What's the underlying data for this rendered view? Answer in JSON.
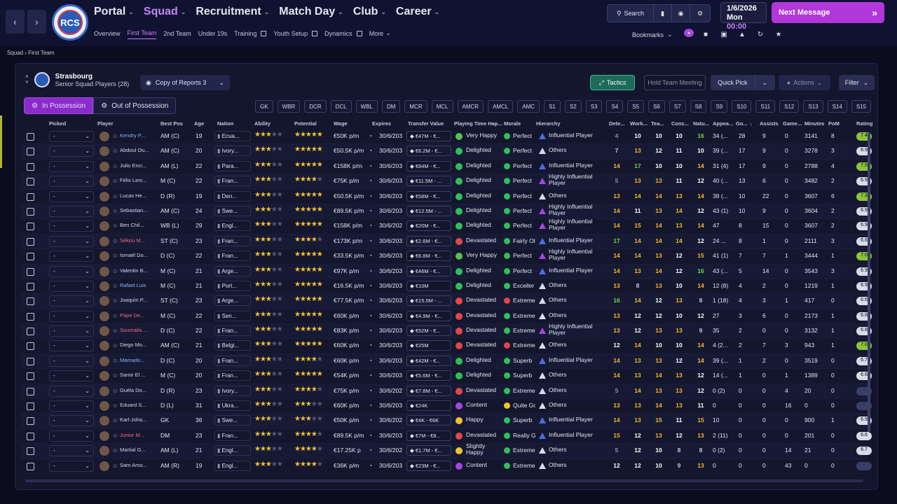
{
  "nav": {
    "back": "‹",
    "forward": "›",
    "club_badge": "RCS",
    "main": [
      {
        "label": "Portal",
        "active": false
      },
      {
        "label": "Squad",
        "active": true
      },
      {
        "label": "Recruitment",
        "active": false
      },
      {
        "label": "Match Day",
        "active": false
      },
      {
        "label": "Club",
        "active": false
      },
      {
        "label": "Career",
        "active": false
      }
    ],
    "sub": [
      {
        "label": "Overview",
        "active": false,
        "ext": false
      },
      {
        "label": "First Team",
        "active": true,
        "ext": false
      },
      {
        "label": "2nd Team",
        "active": false,
        "ext": false
      },
      {
        "label": "Under 19s",
        "active": false,
        "ext": false
      },
      {
        "label": "Training",
        "active": false,
        "ext": true
      },
      {
        "label": "Youth Setup",
        "active": false,
        "ext": true
      },
      {
        "label": "Dynamics",
        "active": false,
        "ext": true
      },
      {
        "label": "More",
        "active": false,
        "ext": false
      }
    ]
  },
  "header": {
    "search": "Search",
    "date": "1/6/2026",
    "day": "Mon",
    "time": "00:00",
    "next_message": "Next Message",
    "bookmarks": "Bookmarks"
  },
  "breadcrumb": {
    "root": "Squad",
    "current": "First Team"
  },
  "panel": {
    "club": "Strasbourg",
    "subtitle": "Senior Squad Players (28)",
    "view": "Copy of Reports 3",
    "tactics": "Tactics",
    "hold_meeting": "Hold Team Meeting",
    "quick_pick": "Quick Pick",
    "actions": "Actions",
    "filter": "Filter",
    "in_possession": "In Possession",
    "out_possession": "Out of Possession",
    "positions": [
      "GK",
      "WBR",
      "DCR",
      "DCL",
      "WBL",
      "DM",
      "MCR",
      "MCL",
      "AMCR",
      "AMCL",
      "AMC",
      "S1",
      "S2",
      "S3",
      "S4",
      "S5",
      "S6",
      "S7",
      "S8",
      "S9",
      "S10",
      "S11",
      "S12",
      "S13",
      "S14",
      "S15"
    ]
  },
  "columns": [
    "Picked",
    "Player",
    "Best Pos",
    "Age",
    "Nation",
    "Ability",
    "Potential",
    "Wage",
    "Expires",
    "Transfer Value",
    "Playing Time Hap...",
    "Morale",
    "Hierarchy",
    "Dete...",
    "Work...",
    "Tea...",
    "Conc...",
    "Natu...",
    "Appea...",
    "Go...",
    "Assists",
    "Game...",
    "Minutes",
    "PoM",
    "Rating"
  ],
  "colors": {
    "accent": "#c685f5",
    "possession": "#8a2ccc",
    "tactics": "#1f6a58",
    "star": "#f1c232"
  },
  "players": [
    {
      "picked": "-",
      "name": "Kendry P...",
      "style": "hl",
      "pos": "AM (C)",
      "age": "19",
      "nation": "Ecua...",
      "ab": 3,
      "pot": 5,
      "wage": "€50K p/m",
      "exp": "30/6/203",
      "tv": "€47M - €...",
      "pt": "Very Happy",
      "ptc": "#58c24b",
      "mor": "Perfect",
      "morc": "#2fbf5a",
      "hier": "Influential Player",
      "hierc": "#4a6ee0",
      "det": "4",
      "wor": "10",
      "tea": "10",
      "con": "10",
      "nat": "16",
      "app": "34 (...",
      "gls": "28",
      "ast": "9",
      "gam": "0",
      "min": "3141",
      "pom": "8",
      "rat": "7.4",
      "ratc": "#8ac43a"
    },
    {
      "picked": "-",
      "name": "Abdoul Ou...",
      "style": "",
      "pos": "AM (C)",
      "age": "20",
      "nation": "Ivory...",
      "ab": 3,
      "pot": 5,
      "wage": "€50.5K p/m",
      "exp": "30/6/203",
      "tv": "€6.2M - €...",
      "pt": "Delighted",
      "ptc": "#2fbf5a",
      "mor": "Perfect",
      "morc": "#2fbf5a",
      "hier": "Others",
      "hierc": "#d8dbe8",
      "det": "7",
      "wor": "13",
      "tea": "12",
      "con": "11",
      "nat": "10",
      "app": "39 (...",
      "gls": "17",
      "ast": "9",
      "gam": "0",
      "min": "3278",
      "pom": "3",
      "rat": "6.9",
      "ratc": "#d8dbe8"
    },
    {
      "picked": "-",
      "name": "Julio Enci...",
      "style": "",
      "pos": "AM (L)",
      "age": "22",
      "nation": "Para...",
      "ab": 3,
      "pot": 5,
      "wage": "€158K p/m",
      "exp": "30/6/203",
      "tv": "€84M - €...",
      "pt": "Delighted",
      "ptc": "#2fbf5a",
      "mor": "Perfect",
      "morc": "#2fbf5a",
      "hier": "Influential Player",
      "hierc": "#4a6ee0",
      "det": "14",
      "wor": "17",
      "tea": "10",
      "con": "10",
      "nat": "14",
      "app": "31 (4)",
      "gls": "17",
      "ast": "9",
      "gam": "0",
      "min": "2788",
      "pom": "4",
      "rat": "7.5",
      "ratc": "#8ac43a"
    },
    {
      "picked": "-",
      "name": "Félix Lem...",
      "style": "",
      "pos": "M (C)",
      "age": "22",
      "nation": "Fran...",
      "ab": 3,
      "pot": 4,
      "wage": "€75K p/m",
      "exp": "30/6/203",
      "tv": "€11.5M - ...",
      "pt": "Delighted",
      "ptc": "#2fbf5a",
      "mor": "Perfect",
      "morc": "#2fbf5a",
      "hier": "Highly Influential Player",
      "hierc": "#a347e0",
      "det": "5",
      "wor": "13",
      "tea": "13",
      "con": "11",
      "nat": "12",
      "app": "40 (...",
      "gls": "13",
      "ast": "6",
      "gam": "0",
      "min": "3482",
      "pom": "2",
      "rat": "6.9",
      "ratc": "#d8dbe8"
    },
    {
      "picked": "-",
      "name": "Lucas He...",
      "style": "",
      "pos": "D (R)",
      "age": "19",
      "nation": "Den...",
      "ab": 3,
      "pot": 5,
      "wage": "€50.5K p/m",
      "exp": "30/6/203",
      "tv": "€58M - €...",
      "pt": "Delighted",
      "ptc": "#2fbf5a",
      "mor": "Perfect",
      "morc": "#2fbf5a",
      "hier": "Others",
      "hierc": "#d8dbe8",
      "det": "13",
      "wor": "14",
      "tea": "14",
      "con": "13",
      "nat": "14",
      "app": "38 (...",
      "gls": "10",
      "ast": "22",
      "gam": "0",
      "min": "3607",
      "pom": "6",
      "rat": "7.3",
      "ratc": "#8ac43a"
    },
    {
      "picked": "-",
      "name": "Sebastian...",
      "style": "",
      "pos": "AM (C)",
      "age": "24",
      "nation": "Swe...",
      "ab": 3,
      "pot": 5,
      "wage": "€89.5K p/m",
      "exp": "30/6/203",
      "tv": "€12.5M - ...",
      "pt": "Delighted",
      "ptc": "#2fbf5a",
      "mor": "Perfect",
      "morc": "#2fbf5a",
      "hier": "Highly Influential Player",
      "hierc": "#a347e0",
      "det": "14",
      "wor": "11",
      "tea": "13",
      "con": "14",
      "nat": "12",
      "app": "43 (1)",
      "gls": "10",
      "ast": "9",
      "gam": "0",
      "min": "3604",
      "pom": "2",
      "rat": "6.9",
      "ratc": "#d8dbe8"
    },
    {
      "picked": "-",
      "name": "Ben Chil...",
      "style": "",
      "pos": "WB (L)",
      "age": "29",
      "nation": "Engl...",
      "ab": 3,
      "pot": 5,
      "wage": "€158K p/m",
      "exp": "30/6/202",
      "tv": "€20M - €...",
      "pt": "Delighted",
      "ptc": "#2fbf5a",
      "mor": "Perfect",
      "morc": "#2fbf5a",
      "hier": "Highly Influential Player",
      "hierc": "#a347e0",
      "det": "14",
      "wor": "15",
      "tea": "14",
      "con": "13",
      "nat": "14",
      "app": "47",
      "gls": "8",
      "ast": "15",
      "gam": "0",
      "min": "3607",
      "pom": "2",
      "rat": "6.9",
      "ratc": "#d8dbe8"
    },
    {
      "picked": "-",
      "name": "Sékou M...",
      "style": "red",
      "pos": "ST (C)",
      "age": "23",
      "nation": "Fran...",
      "ab": 3,
      "pot": 4,
      "wage": "€173K p/m",
      "exp": "30/6/203",
      "tv": "€2.6M - €...",
      "pt": "Devastated",
      "ptc": "#e04848",
      "mor": "Fairly Ol",
      "morc": "#2fbf5a",
      "hier": "Influential Player",
      "hierc": "#4a6ee0",
      "det": "17",
      "wor": "14",
      "tea": "14",
      "con": "14",
      "nat": "12",
      "app": "24 ...",
      "gls": "8",
      "ast": "1",
      "gam": "0",
      "min": "2111",
      "pom": "3",
      "rat": "6.6",
      "ratc": "#d8dbe8"
    },
    {
      "picked": "-",
      "name": "Ismaël Do...",
      "style": "",
      "pos": "D (C)",
      "age": "22",
      "nation": "Fran...",
      "ab": 3,
      "pot": 5,
      "wage": "€33.5K p/m",
      "exp": "30/6/203",
      "tv": "€6.8M - €...",
      "pt": "Very Happy",
      "ptc": "#58c24b",
      "mor": "Perfect",
      "morc": "#2fbf5a",
      "hier": "Highly Influential Player",
      "hierc": "#a347e0",
      "det": "14",
      "wor": "14",
      "tea": "13",
      "con": "12",
      "nat": "15",
      "app": "41 (1)",
      "gls": "7",
      "ast": "7",
      "gam": "1",
      "min": "3444",
      "pom": "1",
      "rat": "7.0",
      "ratc": "#8ac43a"
    },
    {
      "picked": "-",
      "name": "Valentin B...",
      "style": "",
      "pos": "M (C)",
      "age": "21",
      "nation": "Arge...",
      "ab": 3,
      "pot": 5,
      "wage": "€97K p/m",
      "exp": "30/6/203",
      "tv": "€46M - €...",
      "pt": "Delighted",
      "ptc": "#2fbf5a",
      "mor": "Perfect",
      "morc": "#2fbf5a",
      "hier": "Influential Player",
      "hierc": "#4a6ee0",
      "det": "14",
      "wor": "13",
      "tea": "14",
      "con": "12",
      "nat": "16",
      "app": "43 (...",
      "gls": "5",
      "ast": "14",
      "gam": "0",
      "min": "3543",
      "pom": "3",
      "rat": "6.9",
      "ratc": "#d8dbe8"
    },
    {
      "picked": "-",
      "name": "Rafael Luis",
      "style": "hl",
      "pos": "M (C)",
      "age": "21",
      "nation": "Port...",
      "ab": 3,
      "pot": 5,
      "wage": "€16.5K p/m",
      "exp": "30/6/203",
      "tv": "€10M",
      "pt": "Delighted",
      "ptc": "#2fbf5a",
      "mor": "Exceller",
      "morc": "#2fbf5a",
      "hier": "Others",
      "hierc": "#d8dbe8",
      "det": "13",
      "wor": "8",
      "tea": "13",
      "con": "10",
      "nat": "14",
      "app": "12 (8)",
      "gls": "4",
      "ast": "2",
      "gam": "0",
      "min": "1219",
      "pom": "1",
      "rat": "6.9",
      "ratc": "#d8dbe8"
    },
    {
      "picked": "-",
      "name": "Joaquín P...",
      "style": "",
      "pos": "ST (C)",
      "age": "23",
      "nation": "Arge...",
      "ab": 3,
      "pot": 5,
      "wage": "€77.5K p/m",
      "exp": "30/6/203",
      "tv": "€15.5M - ...",
      "pt": "Devastated",
      "ptc": "#e04848",
      "mor": "Extreme",
      "morc": "#e04848",
      "hier": "Others",
      "hierc": "#d8dbe8",
      "det": "16",
      "wor": "14",
      "tea": "12",
      "con": "13",
      "nat": "8",
      "app": "1 (18)",
      "gls": "4",
      "ast": "3",
      "gam": "1",
      "min": "417",
      "pom": "0",
      "rat": "6.6",
      "ratc": "#d8dbe8"
    },
    {
      "picked": "-",
      "name": "Pape De...",
      "style": "red",
      "pos": "M (C)",
      "age": "22",
      "nation": "Sen...",
      "ab": 3,
      "pot": 5,
      "wage": "€60K p/m",
      "exp": "30/6/203",
      "tv": "€4.9M - €...",
      "pt": "Devastated",
      "ptc": "#e04848",
      "mor": "Extreme",
      "morc": "#2fbf5a",
      "hier": "Others",
      "hierc": "#d8dbe8",
      "det": "13",
      "wor": "12",
      "tea": "12",
      "con": "10",
      "nat": "12",
      "app": "27",
      "gls": "3",
      "ast": "6",
      "gam": "0",
      "min": "2173",
      "pom": "1",
      "rat": "6.8",
      "ratc": "#d8dbe8"
    },
    {
      "picked": "-",
      "name": "Soumaila ...",
      "style": "red",
      "pos": "D (C)",
      "age": "22",
      "nation": "Fran...",
      "ab": 3,
      "pot": 5,
      "wage": "€83K p/m",
      "exp": "30/6/203",
      "tv": "€52M - €...",
      "pt": "Devastated",
      "ptc": "#e04848",
      "mor": "Extreme",
      "morc": "#2fbf5a",
      "hier": "Highly Influential Player",
      "hierc": "#a347e0",
      "det": "13",
      "wor": "12",
      "tea": "13",
      "con": "13",
      "nat": "9",
      "app": "35",
      "gls": "2",
      "ast": "0",
      "gam": "0",
      "min": "3132",
      "pom": "1",
      "rat": "6.8",
      "ratc": "#d8dbe8"
    },
    {
      "picked": "-",
      "name": "Diego Mo...",
      "style": "",
      "pos": "AM (C)",
      "age": "21",
      "nation": "Belgi...",
      "ab": 3,
      "pot": 5,
      "wage": "€60K p/m",
      "exp": "30/6/203",
      "tv": "€25M",
      "pt": "Devastated",
      "ptc": "#e04848",
      "mor": "Extreme",
      "morc": "#e04848",
      "hier": "Others",
      "hierc": "#d8dbe8",
      "det": "12",
      "wor": "14",
      "tea": "10",
      "con": "10",
      "nat": "14",
      "app": "4 (2...",
      "gls": "2",
      "ast": "7",
      "gam": "3",
      "min": "943",
      "pom": "1",
      "rat": "7.0",
      "ratc": "#8ac43a"
    },
    {
      "picked": "-",
      "name": "Mamado...",
      "style": "hl",
      "pos": "D (C)",
      "age": "20",
      "nation": "Fran...",
      "ab": 3,
      "pot": 4,
      "wage": "€60K p/m",
      "exp": "30/6/203",
      "tv": "€42M - €...",
      "pt": "Delighted",
      "ptc": "#2fbf5a",
      "mor": "Superb",
      "morc": "#2fbf5a",
      "hier": "Influential Player",
      "hierc": "#4a6ee0",
      "det": "14",
      "wor": "13",
      "tea": "13",
      "con": "12",
      "nat": "14",
      "app": "39 (...",
      "gls": "1",
      "ast": "2",
      "gam": "0",
      "min": "3519",
      "pom": "0",
      "rat": "6.7",
      "ratc": "#d8dbe8"
    },
    {
      "picked": "-",
      "name": "Samir El ...",
      "style": "",
      "pos": "M (C)",
      "age": "20",
      "nation": "Fran...",
      "ab": 3,
      "pot": 5,
      "wage": "€54K p/m",
      "exp": "30/6/203",
      "tv": "€5.6M - €...",
      "pt": "Delighted",
      "ptc": "#2fbf5a",
      "mor": "Superb",
      "morc": "#2fbf5a",
      "hier": "Others",
      "hierc": "#d8dbe8",
      "det": "14",
      "wor": "13",
      "tea": "14",
      "con": "13",
      "nat": "12",
      "app": "14 (...",
      "gls": "1",
      "ast": "0",
      "gam": "1",
      "min": "1389",
      "pom": "0",
      "rat": "6.6",
      "ratc": "#d8dbe8"
    },
    {
      "picked": "-",
      "name": "Guéla Do...",
      "style": "",
      "pos": "D (R)",
      "age": "23",
      "nation": "Ivory...",
      "ab": 3,
      "pot": 4,
      "wage": "€75K p/m",
      "exp": "30/6/202",
      "tv": "€7.8M - €...",
      "pt": "Devastated",
      "ptc": "#e04848",
      "mor": "Extreme",
      "morc": "#2fbf5a",
      "hier": "Others",
      "hierc": "#d8dbe8",
      "det": "5",
      "wor": "14",
      "tea": "13",
      "con": "13",
      "nat": "12",
      "app": "0 (2)",
      "gls": "0",
      "ast": "0",
      "gam": "4",
      "min": "20",
      "pom": "0",
      "rat": "-",
      "ratc": "#3a3f66"
    },
    {
      "picked": "-",
      "name": "Eduard S...",
      "style": "",
      "pos": "D (L)",
      "age": "31",
      "nation": "Ukra...",
      "ab": 3,
      "pot": 3,
      "wage": "€60K p/m",
      "exp": "30/6/203",
      "tv": "€24K",
      "pt": "Content",
      "ptc": "#a347e0",
      "mor": "Quite Go",
      "morc": "#f1c232",
      "hier": "Others",
      "hierc": "#d8dbe8",
      "det": "13",
      "wor": "13",
      "tea": "14",
      "con": "13",
      "nat": "11",
      "app": "0",
      "gls": "0",
      "ast": "0",
      "gam": "16",
      "min": "0",
      "pom": "0",
      "rat": "-",
      "ratc": "#3a3f66"
    },
    {
      "picked": "-",
      "name": "Karl-Joha...",
      "style": "",
      "pos": "GK",
      "age": "36",
      "nation": "Swe...",
      "ab": 3,
      "pot": 3,
      "wage": "€50K p/m",
      "exp": "30/6/202",
      "tv": "€4K - €6K",
      "pt": "Happy",
      "ptc": "#f1c232",
      "mor": "Superb",
      "morc": "#2fbf5a",
      "hier": "Influential Player",
      "hierc": "#4a6ee0",
      "det": "14",
      "wor": "13",
      "tea": "15",
      "con": "11",
      "nat": "15",
      "app": "10",
      "gls": "0",
      "ast": "0",
      "gam": "0",
      "min": "900",
      "pom": "1",
      "rat": "6.9",
      "ratc": "#d8dbe8"
    },
    {
      "picked": "-",
      "name": "Junior M...",
      "style": "red",
      "pos": "DM",
      "age": "23",
      "nation": "Fran...",
      "ab": 3,
      "pot": 4,
      "wage": "€89.5K p/m",
      "exp": "30/6/203",
      "tv": "€7M - €8...",
      "pt": "Devastated",
      "ptc": "#e04848",
      "mor": "Really G",
      "morc": "#2fbf5a",
      "hier": "Influential Player",
      "hierc": "#4a6ee0",
      "det": "15",
      "wor": "12",
      "tea": "13",
      "con": "12",
      "nat": "13",
      "app": "2 (11)",
      "gls": "0",
      "ast": "0",
      "gam": "0",
      "min": "201",
      "pom": "0",
      "rat": "6.6",
      "ratc": "#d8dbe8"
    },
    {
      "picked": "-",
      "name": "Martial G...",
      "style": "",
      "pos": "AM (L)",
      "age": "21",
      "nation": "Engl...",
      "ab": 3,
      "pot": 4,
      "wage": "€17.25K p",
      "exp": "30/6/202",
      "tv": "€1.7M - €...",
      "pt": "Slightly Happy",
      "ptc": "#f1c232",
      "mor": "Extreme",
      "morc": "#2fbf5a",
      "hier": "Others",
      "hierc": "#d8dbe8",
      "det": "5",
      "wor": "12",
      "tea": "10",
      "con": "8",
      "nat": "8",
      "app": "0 (2)",
      "gls": "0",
      "ast": "0",
      "gam": "14",
      "min": "21",
      "pom": "0",
      "rat": "6.7",
      "ratc": "#d8dbe8"
    },
    {
      "picked": "-",
      "name": "Sam Amo...",
      "style": "",
      "pos": "AM (R)",
      "age": "19",
      "nation": "Engl...",
      "ab": 3,
      "pot": 4,
      "wage": "€36K p/m",
      "exp": "30/6/203",
      "tv": "€23M - €...",
      "pt": "Content",
      "ptc": "#a347e0",
      "mor": "Extreme",
      "morc": "#2fbf5a",
      "hier": "Others",
      "hierc": "#d8dbe8",
      "det": "12",
      "wor": "12",
      "tea": "10",
      "con": "9",
      "nat": "13",
      "app": "0",
      "gls": "0",
      "ast": "0",
      "gam": "43",
      "min": "0",
      "pom": "0",
      "rat": "-",
      "ratc": "#3a3f66"
    }
  ]
}
